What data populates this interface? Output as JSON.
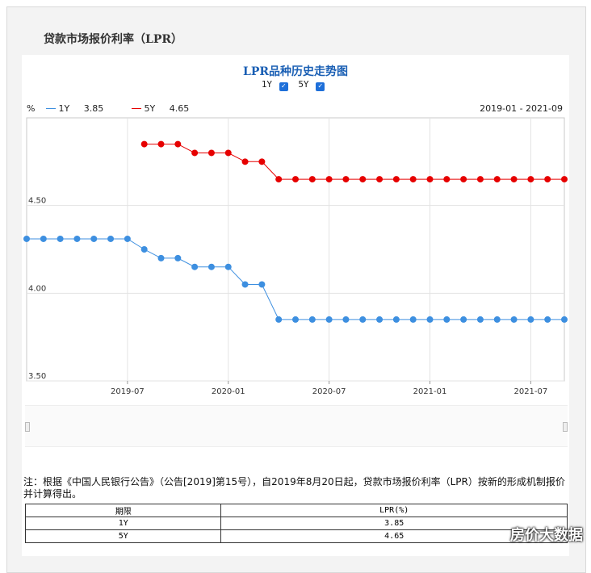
{
  "page": {
    "title": "贷款市场报价利率（LPR）",
    "note": "注：根据《中国人民银行公告》（公告[2019]第15号），自2019年8月20日起，贷款市场报价利率（LPR）按新的形成机制报价并计算得出。",
    "watermark": "房价大数据"
  },
  "controls": {
    "toggle_1y_label": "1Y",
    "toggle_5y_label": "5Y",
    "unit": "%",
    "date_range": "2019-01 - 2021-09",
    "legend_1y_label": "1Y",
    "legend_1y_value": "3.85",
    "legend_5y_label": "5Y",
    "legend_5y_value": "4.65"
  },
  "table": {
    "headers": [
      "期限",
      "LPR(%)"
    ],
    "rows": [
      [
        "1Y",
        "3.85"
      ],
      [
        "5Y",
        "4.65"
      ]
    ]
  },
  "chart_data": {
    "type": "line",
    "title": "LPR品种历史走势图",
    "ylabel": "%",
    "ylim": [
      3.5,
      5.0
    ],
    "yticks": [
      "3.50",
      "4.00",
      "4.50"
    ],
    "ytick_values": [
      3.5,
      4.0,
      4.5
    ],
    "x": [
      "2019-01",
      "2019-02",
      "2019-03",
      "2019-04",
      "2019-05",
      "2019-06",
      "2019-07",
      "2019-08",
      "2019-09",
      "2019-10",
      "2019-11",
      "2019-12",
      "2020-01",
      "2020-02",
      "2020-03",
      "2020-04",
      "2020-05",
      "2020-06",
      "2020-07",
      "2020-08",
      "2020-09",
      "2020-10",
      "2020-11",
      "2020-12",
      "2021-01",
      "2021-02",
      "2021-03",
      "2021-04",
      "2021-05",
      "2021-06",
      "2021-07",
      "2021-08",
      "2021-09"
    ],
    "xticks": [
      "2019-07",
      "2020-01",
      "2020-07",
      "2021-01",
      "2021-07"
    ],
    "series": [
      {
        "name": "1Y",
        "color": "#3d8fe0",
        "values": [
          4.31,
          4.31,
          4.31,
          4.31,
          4.31,
          4.31,
          4.31,
          4.25,
          4.2,
          4.2,
          4.15,
          4.15,
          4.15,
          4.05,
          4.05,
          3.85,
          3.85,
          3.85,
          3.85,
          3.85,
          3.85,
          3.85,
          3.85,
          3.85,
          3.85,
          3.85,
          3.85,
          3.85,
          3.85,
          3.85,
          3.85,
          3.85,
          3.85
        ]
      },
      {
        "name": "5Y",
        "color": "#e60000",
        "values": [
          null,
          null,
          null,
          null,
          null,
          null,
          null,
          4.85,
          4.85,
          4.85,
          4.8,
          4.8,
          4.8,
          4.75,
          4.75,
          4.65,
          4.65,
          4.65,
          4.65,
          4.65,
          4.65,
          4.65,
          4.65,
          4.65,
          4.65,
          4.65,
          4.65,
          4.65,
          4.65,
          4.65,
          4.65,
          4.65,
          4.65
        ]
      }
    ]
  }
}
